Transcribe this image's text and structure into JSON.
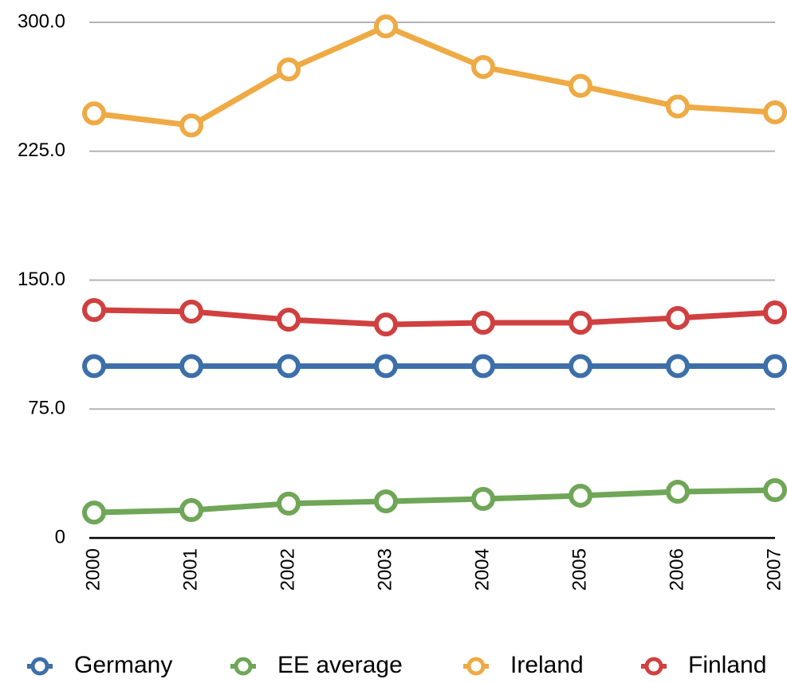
{
  "chart_data": {
    "type": "line",
    "categories": [
      "2000",
      "2001",
      "2002",
      "2003",
      "2004",
      "2005",
      "2006",
      "2007"
    ],
    "series": [
      {
        "name": "Germany",
        "color": "#3d6fa8",
        "values": [
          100,
          100,
          100,
          100,
          100,
          100,
          100,
          100
        ]
      },
      {
        "name": "EE average",
        "color": "#6fa657",
        "values": [
          14.8,
          16.2,
          20,
          21.3,
          22.7,
          24.6,
          26.9,
          27.8
        ]
      },
      {
        "name": "Ireland",
        "color": "#eeaa44",
        "values": [
          247,
          240,
          272.6,
          297.6,
          274,
          263,
          251,
          247.6
        ]
      },
      {
        "name": "Finland",
        "color": "#d04040",
        "values": [
          132.6,
          131.7,
          127,
          124.2,
          125.2,
          125.2,
          128,
          131.2
        ]
      }
    ],
    "ylim": [
      0,
      300
    ],
    "yticks": [
      0,
      {
        "value": 75,
        "label": "75.0"
      },
      {
        "value": 150,
        "label": "150.0"
      },
      {
        "value": 225,
        "label": "225.0"
      },
      {
        "value": 300,
        "label": "300.0"
      }
    ],
    "grid": true,
    "legend": "bottom"
  }
}
